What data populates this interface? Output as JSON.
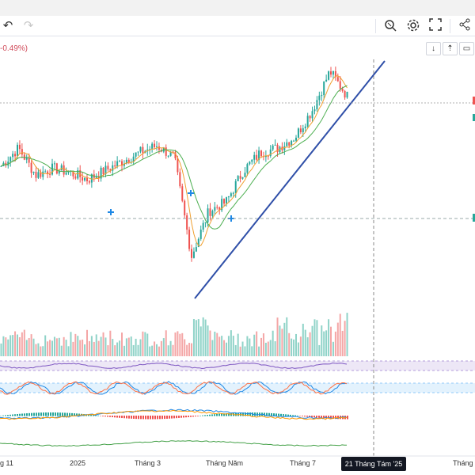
{
  "toolbar": {
    "undo_icon": "undo-icon",
    "redo_icon": "redo-icon",
    "right_icons": [
      "crosshair-zoom-icon",
      "settings-icon",
      "fullscreen-icon",
      "snapshot-icon",
      "share-icon"
    ]
  },
  "legend": {
    "change_text": "-0.49%)"
  },
  "mini_buttons": [
    "↓",
    "⇡",
    "▭"
  ],
  "xaxis": {
    "labels": [
      "g 11",
      "2025",
      "Tháng 3",
      "Tháng Năm",
      "Tháng 7",
      "Tháng"
    ],
    "crosshair_date": "21 Tháng Tám '25"
  },
  "colors": {
    "up": "#26a69a",
    "down": "#ef5350",
    "ma_fast": "#f0a030",
    "ma_slow": "#4caf50",
    "trendline": "#2f4fa8",
    "rsi": "#7e57c2",
    "stoch_k": "#1e88e5",
    "stoch_d": "#ff7043",
    "macd": "#1e88e5",
    "signal": "#ff9800"
  },
  "chart_data": {
    "type": "candlestick",
    "x_labels": [
      "g 11",
      "2025",
      "Tháng 3",
      "Tháng Năm",
      "Tháng 7",
      "Tháng"
    ],
    "title": "",
    "price_trend": [
      [
        "2024-11",
        0.58
      ],
      [
        "2024-11-20",
        0.66
      ],
      [
        "2024-12",
        0.54
      ],
      [
        "2024-12-20",
        0.57
      ],
      [
        "2025-01",
        0.55
      ],
      [
        "2025-01-20",
        0.52
      ],
      [
        "2025-02",
        0.56
      ],
      [
        "2025-02-20",
        0.6
      ],
      [
        "2025-03",
        0.64
      ],
      [
        "2025-03-20",
        0.67
      ],
      [
        "2025-04-01",
        0.62
      ],
      [
        "2025-04-09",
        0.18
      ],
      [
        "2025-04-20",
        0.38
      ],
      [
        "2025-05",
        0.42
      ],
      [
        "2025-05-20",
        0.56
      ],
      [
        "2025-06",
        0.64
      ],
      [
        "2025-06-20",
        0.66
      ],
      [
        "2025-07",
        0.71
      ],
      [
        "2025-07-20",
        0.83
      ],
      [
        "2025-08",
        1.0
      ],
      [
        "2025-08-15",
        0.89
      ]
    ],
    "indicators": [
      "Volume",
      "RSI",
      "Stochastic",
      "MACD",
      "Oscillator"
    ],
    "trendline": "ascending from April 2025 low through August 2025"
  }
}
